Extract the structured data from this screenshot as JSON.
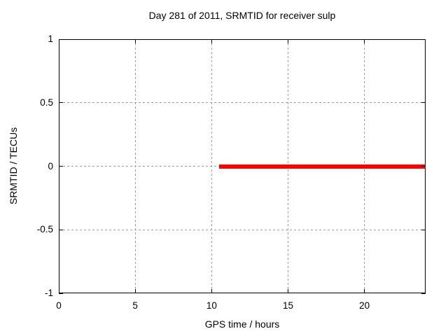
{
  "chart_data": {
    "type": "line",
    "title": "Day 281 of 2011, SRMTID for receiver sulp",
    "xlabel": "GPS time / hours",
    "ylabel": "SRMTID / TECUs",
    "xlim": [
      0,
      24
    ],
    "ylim": [
      -1,
      1
    ],
    "xticks": [
      0,
      5,
      10,
      15,
      20
    ],
    "yticks": [
      -1,
      -0.5,
      0,
      0.5,
      1
    ],
    "grid": true,
    "legend": "none",
    "series": [
      {
        "name": "SRMTID",
        "color": "#ff0000",
        "linewidth": 6,
        "points": [
          [
            10.5,
            0
          ],
          [
            24,
            0
          ]
        ]
      }
    ]
  },
  "colors": {
    "background": "#ffffff",
    "frame": "#000000",
    "grid": "#9e9e9e",
    "text": "#000000",
    "series_red": "#ff0000"
  }
}
